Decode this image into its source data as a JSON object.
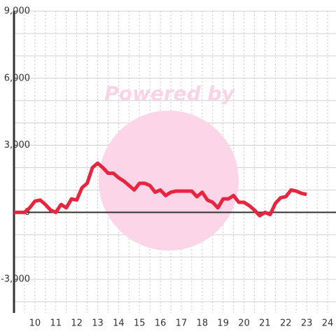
{
  "chart_data": {
    "type": "line",
    "watermark": "Powered by",
    "x": [
      9,
      9.25,
      9.5,
      9.75,
      10,
      10.25,
      10.5,
      10.75,
      11,
      11.25,
      11.5,
      11.75,
      12,
      12.25,
      12.5,
      12.75,
      13,
      13.25,
      13.5,
      13.75,
      14,
      14.25,
      14.5,
      14.75,
      15,
      15.25,
      15.5,
      15.75,
      16,
      16.25,
      16.5,
      16.75,
      17,
      17.25,
      17.5,
      17.75,
      18,
      18.25,
      18.5,
      18.75,
      19,
      19.25,
      19.5,
      19.75,
      20,
      20.25,
      20.5,
      20.75,
      21,
      21.25,
      21.5,
      21.75,
      22,
      22.25,
      22.5,
      22.75,
      23
    ],
    "series": [
      {
        "color": "#e8253f",
        "values": [
          0,
          0,
          0,
          200,
          500,
          550,
          350,
          100,
          0,
          350,
          200,
          600,
          550,
          1100,
          1300,
          2000,
          2200,
          2000,
          1750,
          1750,
          1550,
          1400,
          1200,
          1000,
          1300,
          1300,
          1200,
          900,
          1000,
          750,
          900,
          950,
          950,
          950,
          950,
          700,
          900,
          550,
          450,
          200,
          600,
          600,
          750,
          450,
          450,
          300,
          100,
          -150,
          0,
          -100,
          400,
          650,
          700,
          1000,
          950,
          850,
          800
        ]
      }
    ],
    "xlim": [
      9,
      24.4
    ],
    "ylim": [
      -4500,
      9000
    ],
    "xticks": [
      10,
      11,
      12,
      13,
      14,
      15,
      16,
      17,
      18,
      19,
      20,
      21,
      22,
      23,
      24
    ],
    "xgrid": [
      9.5,
      10,
      10.5,
      11,
      11.5,
      12,
      12.5,
      13,
      13.5,
      14,
      14.5,
      15,
      15.5,
      16,
      16.5,
      17,
      17.5,
      18,
      18.5,
      19,
      19.5,
      20,
      20.5,
      21,
      21.5,
      22,
      22.5,
      23,
      23.5,
      24
    ],
    "yticks": [
      {
        "value": -3000,
        "label": "-3,000"
      },
      0,
      {
        "value": 3000,
        "label": "3,000"
      },
      {
        "value": 6000,
        "label": "6,000"
      },
      {
        "value": 9000,
        "label": "9,000"
      }
    ],
    "ygrid": [
      -4000,
      -3000,
      -2000,
      -1000,
      1000,
      2000,
      3000,
      4000,
      5000,
      6000,
      7000,
      8000,
      9000
    ]
  }
}
